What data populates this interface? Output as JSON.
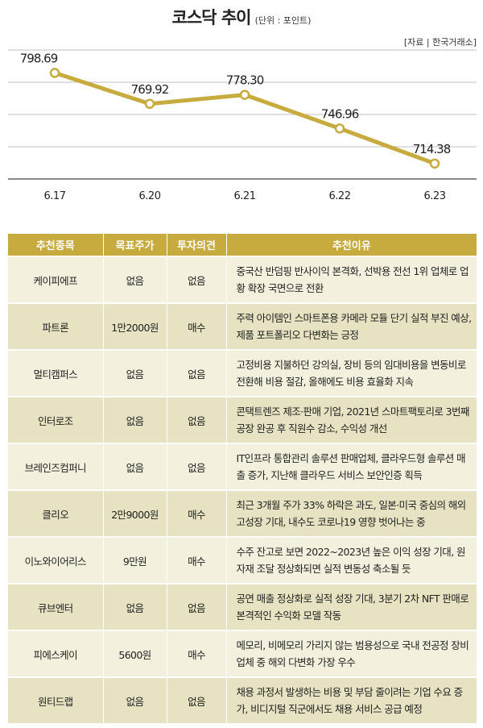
{
  "header": {
    "title": "코스닥 추이",
    "unit": "(단위 : 포인트)",
    "source": "[자료 | 한국거래소]"
  },
  "chart_data": {
    "type": "line",
    "title": "코스닥 추이",
    "unit": "(단위 : 포인트)",
    "categories": [
      "6.17",
      "6.20",
      "6.21",
      "6.22",
      "6.23"
    ],
    "values": [
      798.69,
      769.92,
      778.3,
      746.96,
      714.38
    ],
    "value_labels": [
      "798.69",
      "769.92",
      "778.30",
      "746.96",
      "714.38"
    ],
    "ylim": [
      700,
      820
    ],
    "grid": true,
    "line_color": "#c7ab3f"
  },
  "table": {
    "headers": [
      "추천종목",
      "목표주가",
      "투자의견",
      "추천이유"
    ],
    "rows": [
      [
        "케이피에프",
        "없음",
        "없음",
        "중국산 반덤핑 반사이익 본격화, 선박용 전선 1위 업체로 업황 확장 국면으로 전환"
      ],
      [
        "파트론",
        "1만2000원",
        "매수",
        "주력 아이템인 스마트폰용 카메라 모듈 단기 실적 부진 예상, 제품 포트폴리오 다변화는 긍정"
      ],
      [
        "멀티캠퍼스",
        "없음",
        "없음",
        "고정비용 지불하던 강의실, 장비 등의 임대비용을 변동비로 전환해 비용 절감, 올해에도 비용 효율화 지속"
      ],
      [
        "인터로조",
        "없음",
        "없음",
        "콘택트렌즈 제조·판매 기업, 2021년 스마트팩토리로 3번째 공장 완공 후 직원수 감소, 수익성 개선"
      ],
      [
        "브레인즈컴퍼니",
        "없음",
        "없음",
        "IT인프라 통합관리 솔루션 판매업체, 클라우드형 솔루션 매출 증가, 지난해 클라우드 서비스 보안인증 획득"
      ],
      [
        "클리오",
        "2만9000원",
        "매수",
        "최근 3개월 주가 33% 하락은 과도, 일본·미국 중심의 해외 고성장 기대, 내수도 코로나19 영향 벗어나는 중"
      ],
      [
        "이노와이어리스",
        "9만원",
        "매수",
        "수주 잔고로 보면 2022~2023년 높은 이익 성장 기대, 원자재 조달 정상화되면 실적 변동성 축소될 듯"
      ],
      [
        "큐브엔터",
        "없음",
        "없음",
        "공연 매출 정상화로 실적 성장 기대, 3분기 2차 NFT 판매로 본격적인 수익화 모델 작동"
      ],
      [
        "피에스케이",
        "5600원",
        "매수",
        "메모리, 비메모리 가리지 않는 범용성으로 국내 전공정 장비 업체 중 해외 다변화 가장 우수"
      ],
      [
        "원티드랩",
        "없음",
        "없음",
        "채용 과정서 발생하는 비용 및 부담 줄이려는 기업 수요 증가, 비디지털 직군에서도 채용 서비스 공급 예정"
      ]
    ]
  }
}
